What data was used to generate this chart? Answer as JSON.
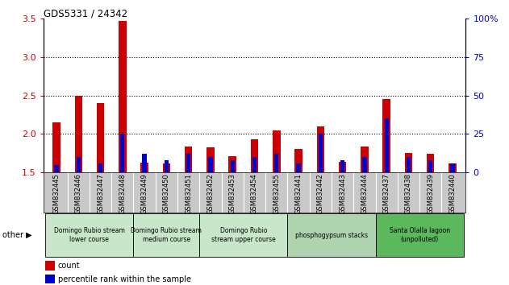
{
  "title": "GDS5331 / 24342",
  "samples": [
    "GSM832445",
    "GSM832446",
    "GSM832447",
    "GSM832448",
    "GSM832449",
    "GSM832450",
    "GSM832451",
    "GSM832452",
    "GSM832453",
    "GSM832454",
    "GSM832455",
    "GSM832441",
    "GSM832442",
    "GSM832443",
    "GSM832444",
    "GSM832437",
    "GSM832438",
    "GSM832439",
    "GSM832440"
  ],
  "count_values": [
    2.15,
    2.5,
    2.4,
    3.47,
    1.63,
    1.62,
    1.84,
    1.83,
    1.71,
    1.93,
    2.05,
    1.81,
    2.1,
    1.64,
    1.84,
    2.45,
    1.75,
    1.74,
    1.62
  ],
  "percentile_values": [
    5,
    10,
    6,
    25,
    12,
    8,
    12,
    10,
    8,
    10,
    12,
    6,
    25,
    8,
    10,
    35,
    10,
    8,
    6
  ],
  "groups": [
    {
      "label": "Domingo Rubio stream\nlower course",
      "start": 0,
      "end": 4
    },
    {
      "label": "Domingo Rubio stream\nmedium course",
      "start": 4,
      "end": 7
    },
    {
      "label": "Domingo Rubio\nstream upper course",
      "start": 7,
      "end": 11
    },
    {
      "label": "phosphogypsum stacks",
      "start": 11,
      "end": 15
    },
    {
      "label": "Santa Olalla lagoon\n(unpolluted)",
      "start": 15,
      "end": 19
    }
  ],
  "group_colors": [
    "#c8e6c9",
    "#c8e6c9",
    "#c8e6c9",
    "#b0d4b0",
    "#5cb85c"
  ],
  "ylim_left": [
    1.5,
    3.5
  ],
  "ylim_right": [
    0,
    100
  ],
  "yticks_left": [
    1.5,
    2.0,
    2.5,
    3.0,
    3.5
  ],
  "yticks_right": [
    0,
    25,
    50,
    75,
    100
  ],
  "count_color": "#cc0000",
  "percentile_color": "#0000cc",
  "bar_width": 0.35,
  "bg_color": "#c8c8c8",
  "plot_bg": "#ffffff"
}
